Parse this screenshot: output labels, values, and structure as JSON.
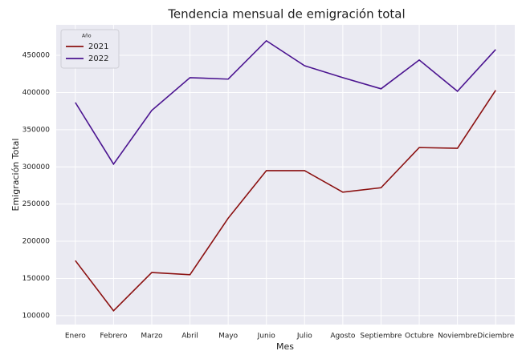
{
  "chart_data": {
    "type": "line",
    "title": "Tendencia mensual de emigración total",
    "x_label": "Mes",
    "y_label": "Emigración Total",
    "legend_title": "Año",
    "legend_position": "upper left",
    "grid": true,
    "categories": [
      "Enero",
      "Febrero",
      "Marzo",
      "Abril",
      "Mayo",
      "Junio",
      "Julio",
      "Agosto",
      "Septiembre",
      "Octubre",
      "Noviembre",
      "Diciembre"
    ],
    "series": [
      {
        "name": "2021",
        "color": "#8b1010",
        "values": [
          174000,
          106500,
          158000,
          155000,
          231000,
          295000,
          295000,
          266000,
          272000,
          326000,
          325000,
          403000
        ]
      },
      {
        "name": "2022",
        "color": "#4b1490",
        "values": [
          386600,
          303700,
          375900,
          420000,
          418000,
          469600,
          436000,
          420000,
          405000,
          443700,
          401700,
          457800
        ]
      }
    ],
    "ylim": [
      88000,
      491000
    ],
    "yticks": [
      100000,
      150000,
      200000,
      250000,
      300000,
      350000,
      400000,
      450000
    ]
  }
}
